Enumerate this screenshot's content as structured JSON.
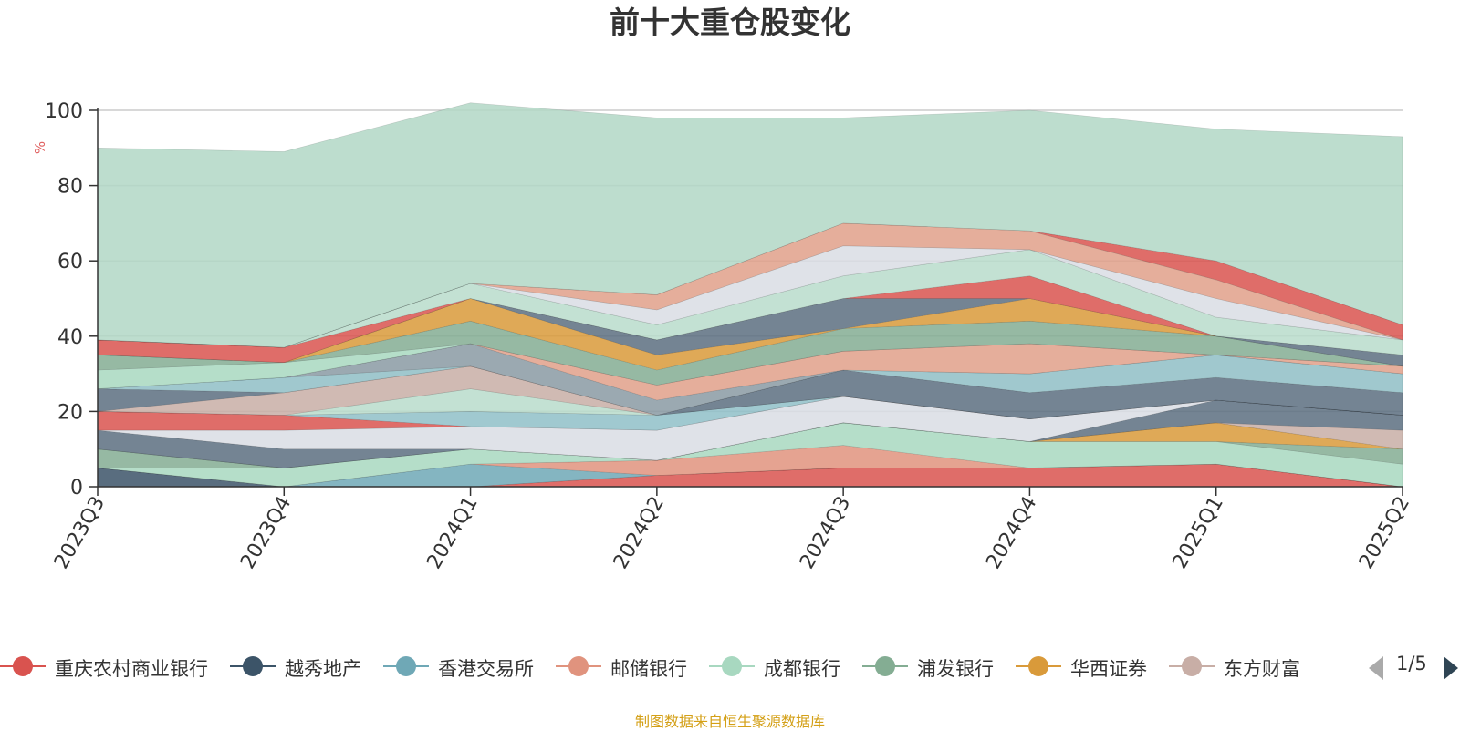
{
  "chart_data": {
    "type": "area",
    "title": "前十大重仓股变化",
    "ylabel": "%",
    "ylim": [
      0,
      100
    ],
    "yticks": [
      0,
      20,
      40,
      60,
      80,
      100
    ],
    "categories": [
      "2023Q3",
      "2023Q4",
      "2024Q1",
      "2024Q2",
      "2024Q3",
      "2024Q4",
      "2025Q1",
      "2025Q2"
    ],
    "grid": true,
    "stacked": true,
    "series": [
      {
        "name": "重庆农村商业银行",
        "color": "#d9534f",
        "values": [
          0,
          0,
          0,
          3,
          5,
          5,
          6,
          0
        ]
      },
      {
        "name": "越秀地产",
        "color": "#3c5468",
        "values": [
          5,
          0,
          0,
          0,
          0,
          0,
          0,
          0
        ]
      },
      {
        "name": "香港交易所",
        "color": "#6fa8b6",
        "values": [
          0,
          0,
          6,
          0,
          0,
          0,
          0,
          0
        ]
      },
      {
        "name": "邮储银行",
        "color": "#e0937e",
        "values": [
          0,
          0,
          0,
          4,
          6,
          0,
          0,
          0
        ]
      },
      {
        "name": "成都银行",
        "color": "#a8d8c0",
        "values": [
          0,
          5,
          4,
          0,
          6,
          7,
          6,
          6
        ]
      },
      {
        "name": "浦发银行",
        "color": "#84ad93",
        "values": [
          5,
          0,
          0,
          0,
          0,
          0,
          0,
          4
        ]
      },
      {
        "name": "华西证券",
        "color": "#d99a3a",
        "values": [
          0,
          0,
          0,
          0,
          0,
          0,
          5,
          0
        ]
      },
      {
        "name": "东方财富",
        "color": "#c8aea6",
        "values": [
          0,
          0,
          0,
          0,
          0,
          0,
          0,
          5
        ]
      },
      {
        "name": "",
        "color": "#5c6f80",
        "values": [
          5,
          5,
          0,
          0,
          0,
          0,
          6,
          4
        ]
      },
      {
        "name": "",
        "color": "#d9dde4",
        "values": [
          0,
          5,
          6,
          8,
          7,
          6,
          0,
          0
        ]
      },
      {
        "name": "",
        "color": "#d9534f",
        "values": [
          5,
          4,
          0,
          0,
          0,
          0,
          0,
          0
        ]
      },
      {
        "name": "",
        "color": "#8fc0c8",
        "values": [
          0,
          0,
          4,
          4,
          0,
          0,
          0,
          0
        ]
      },
      {
        "name": "",
        "color": "#b8dccb",
        "values": [
          0,
          0,
          6,
          0,
          0,
          0,
          0,
          0
        ]
      },
      {
        "name": "",
        "color": "#c8aea6",
        "values": [
          0,
          6,
          6,
          0,
          0,
          0,
          0,
          0
        ]
      },
      {
        "name": "",
        "color": "#5c6f80",
        "values": [
          6,
          0,
          0,
          0,
          7,
          7,
          6,
          6
        ]
      },
      {
        "name": "",
        "color": "#8fbec6",
        "values": [
          0,
          4,
          0,
          0,
          0,
          5,
          6,
          5
        ]
      },
      {
        "name": "",
        "color": "#8a9aa3",
        "values": [
          0,
          0,
          6,
          4,
          0,
          0,
          0,
          0
        ]
      },
      {
        "name": "",
        "color": "#e0a08a",
        "values": [
          0,
          0,
          0,
          4,
          5,
          8,
          0,
          2
        ]
      },
      {
        "name": "",
        "color": "#a8d8c0",
        "values": [
          5,
          4,
          0,
          0,
          0,
          0,
          0,
          0
        ]
      },
      {
        "name": "",
        "color": "#84ad93",
        "values": [
          4,
          0,
          6,
          4,
          6,
          6,
          5,
          0
        ]
      },
      {
        "name": "",
        "color": "#d99a3a",
        "values": [
          0,
          0,
          6,
          4,
          0,
          6,
          0,
          0
        ]
      },
      {
        "name": "",
        "color": "#5c6f80",
        "values": [
          0,
          0,
          0,
          4,
          8,
          0,
          0,
          3
        ]
      },
      {
        "name": "",
        "color": "#d9534f",
        "values": [
          4,
          4,
          0,
          0,
          0,
          6,
          0,
          0
        ]
      },
      {
        "name": "",
        "color": "#b8dccb",
        "values": [
          0,
          0,
          4,
          4,
          6,
          7,
          5,
          4
        ]
      },
      {
        "name": "",
        "color": "#d9dde4",
        "values": [
          0,
          0,
          0,
          4,
          8,
          0,
          5,
          0
        ]
      },
      {
        "name": "",
        "color": "#e0a08a",
        "values": [
          0,
          0,
          0,
          4,
          6,
          5,
          5,
          0
        ]
      },
      {
        "name": "",
        "color": "#d9534f",
        "values": [
          0,
          0,
          0,
          0,
          0,
          0,
          5,
          4
        ]
      },
      {
        "name": "",
        "color": "#b2d7c5",
        "values": [
          51,
          52,
          48,
          47,
          28,
          32,
          35,
          50
        ]
      }
    ],
    "legend": {
      "placement": "bottom",
      "page": "1/5"
    },
    "source_note": "制图数据来自恒生聚源数据库"
  }
}
